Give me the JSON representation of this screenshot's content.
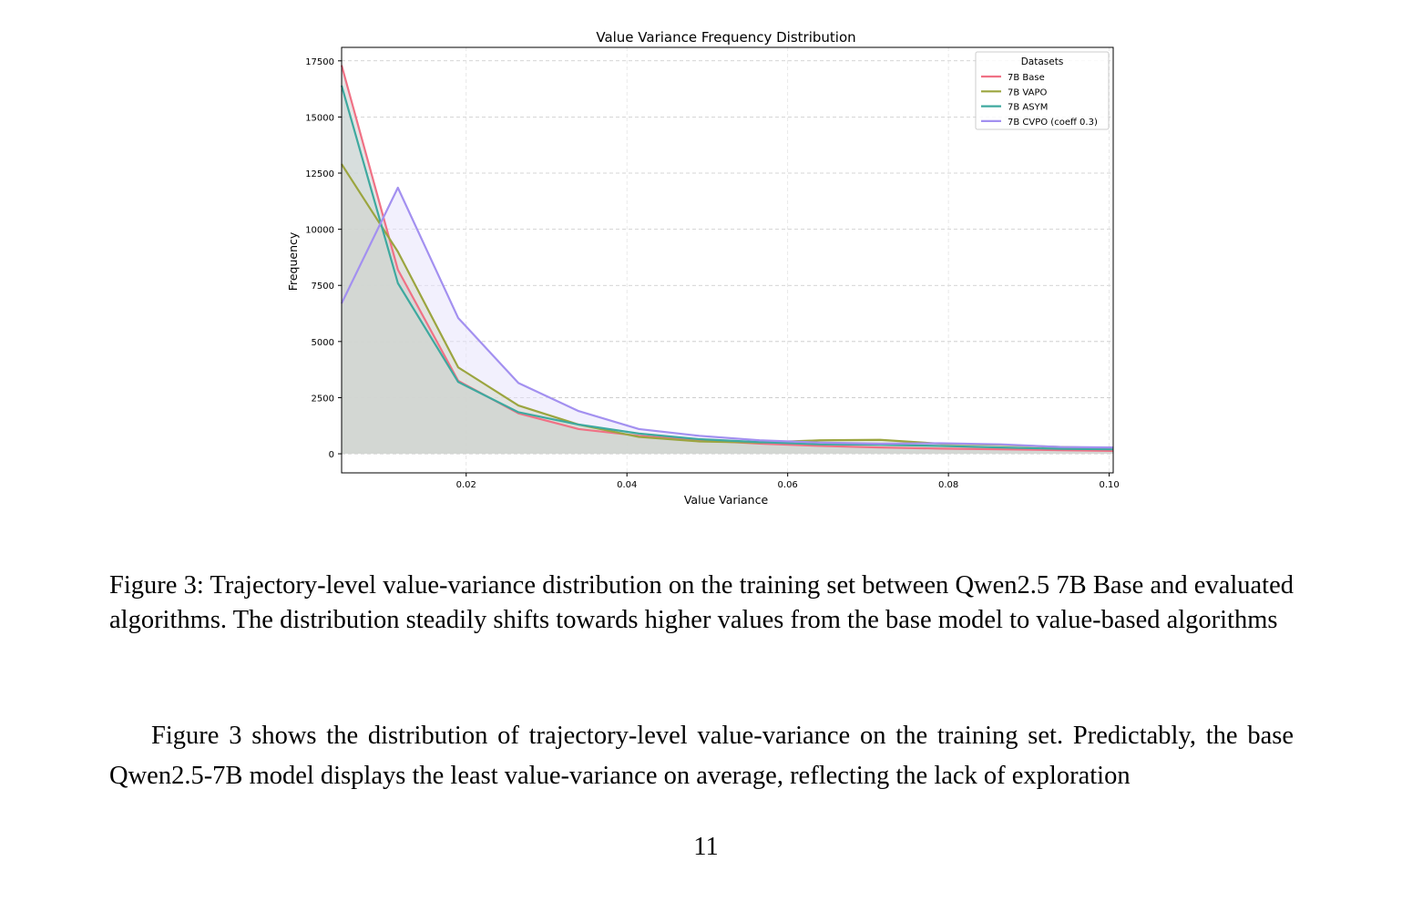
{
  "figure": {
    "caption_label": "Figure 3:",
    "caption_text": "Trajectory-level value-variance distribution on the training set between Qwen2.5 7B Base and evaluated algorithms. The distribution steadily shifts towards higher values from the base model to value-based algorithms"
  },
  "body": {
    "paragraph": "Figure 3 shows the distribution of trajectory-level value-variance on the training set. Predictably, the base Qwen2.5-7B model displays the least value-variance on average, reflecting the lack of exploration"
  },
  "page": {
    "number": "11"
  },
  "chart_data": {
    "type": "area",
    "title": "Value Variance Frequency Distribution",
    "xlabel": "Value Variance",
    "ylabel": "Frequency",
    "xlim": [
      0.0045,
      0.1005
    ],
    "ylim": [
      -850,
      18100
    ],
    "xticks": [
      0.02,
      0.04,
      0.06,
      0.08,
      0.1
    ],
    "xtick_labels": [
      "0.02",
      "0.04",
      "0.06",
      "0.08",
      "0.10"
    ],
    "yticks": [
      0,
      2500,
      5000,
      7500,
      10000,
      12500,
      15000,
      17500
    ],
    "ytick_labels": [
      "0",
      "2500",
      "5000",
      "7500",
      "10000",
      "12500",
      "15000",
      "17500"
    ],
    "grid": true,
    "legend": {
      "title": "Datasets",
      "position": "top-right"
    },
    "x": [
      0.0045,
      0.0115,
      0.019,
      0.0265,
      0.034,
      0.0415,
      0.049,
      0.0565,
      0.064,
      0.0715,
      0.079,
      0.0865,
      0.094,
      0.1005
    ],
    "series": [
      {
        "name": "7B Base",
        "color": "#f07185",
        "fill": "#cfcfcf",
        "values": [
          17300,
          8200,
          3250,
          1800,
          1100,
          800,
          600,
          450,
          350,
          280,
          230,
          200,
          160,
          130
        ]
      },
      {
        "name": "7B VAPO",
        "color": "#9ba53f",
        "fill": "#d6d8c8",
        "values": [
          12900,
          9000,
          3850,
          2150,
          1300,
          750,
          550,
          500,
          600,
          620,
          450,
          400,
          300,
          250
        ]
      },
      {
        "name": "7B ASYM",
        "color": "#3ea99f",
        "fill": "#c6e2df",
        "values": [
          16400,
          7600,
          3200,
          1850,
          1300,
          900,
          650,
          520,
          420,
          400,
          350,
          280,
          220,
          200
        ]
      },
      {
        "name": "7B CVPO (coeff 0.3)",
        "color": "#a390f0",
        "fill": "#e8e4fb",
        "values": [
          6700,
          11850,
          6050,
          3150,
          1900,
          1100,
          800,
          600,
          500,
          450,
          470,
          420,
          300,
          280
        ]
      }
    ]
  }
}
